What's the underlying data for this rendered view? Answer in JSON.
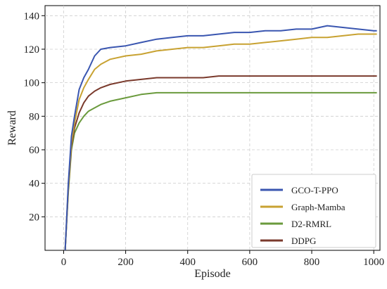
{
  "chart_data": {
    "type": "line",
    "title": "",
    "xlabel": "Episode",
    "ylabel": "Reward",
    "xlim": [
      -60,
      1020
    ],
    "ylim": [
      0,
      146
    ],
    "xticks": [
      0,
      200,
      400,
      600,
      800,
      1000
    ],
    "yticks": [
      20,
      40,
      60,
      80,
      100,
      120,
      140
    ],
    "grid": true,
    "legend_position": "bottom-right",
    "series": [
      {
        "name": "GCO-T-PPO",
        "color": "#3a56b0",
        "x": [
          5,
          15,
          25,
          35,
          50,
          65,
          80,
          100,
          120,
          150,
          200,
          250,
          300,
          350,
          400,
          450,
          500,
          550,
          600,
          650,
          700,
          750,
          800,
          850,
          900,
          950,
          1000,
          1010
        ],
        "y": [
          0,
          40,
          68,
          80,
          96,
          103,
          108,
          116,
          120,
          121,
          122,
          124,
          126,
          127,
          128,
          128,
          129,
          130,
          130,
          131,
          131,
          132,
          132,
          134,
          133,
          132,
          131,
          131
        ]
      },
      {
        "name": "Graph-Mamba",
        "color": "#c8a232",
        "x": [
          5,
          15,
          25,
          35,
          50,
          65,
          80,
          100,
          120,
          150,
          200,
          250,
          300,
          350,
          400,
          450,
          500,
          550,
          600,
          650,
          700,
          750,
          800,
          850,
          900,
          950,
          1000,
          1010
        ],
        "y": [
          0,
          38,
          64,
          76,
          90,
          97,
          102,
          108,
          111,
          114,
          116,
          117,
          119,
          120,
          121,
          121,
          122,
          123,
          123,
          124,
          125,
          126,
          127,
          127,
          128,
          129,
          129,
          129
        ]
      },
      {
        "name": "D2-RMRL",
        "color": "#6a9a3c",
        "x": [
          5,
          15,
          25,
          35,
          50,
          65,
          80,
          100,
          120,
          150,
          200,
          250,
          300,
          350,
          400,
          450,
          500,
          550,
          600,
          650,
          700,
          750,
          800,
          850,
          900,
          950,
          1000,
          1010
        ],
        "y": [
          0,
          35,
          60,
          70,
          76,
          80,
          83,
          85,
          87,
          89,
          91,
          93,
          94,
          94,
          94,
          94,
          94,
          94,
          94,
          94,
          94,
          94,
          94,
          94,
          94,
          94,
          94,
          94
        ]
      },
      {
        "name": "DDPG",
        "color": "#7a3a2c",
        "x": [
          5,
          15,
          25,
          35,
          50,
          65,
          80,
          100,
          120,
          150,
          200,
          250,
          300,
          350,
          400,
          450,
          500,
          550,
          600,
          650,
          700,
          750,
          800,
          850,
          900,
          950,
          1000,
          1010
        ],
        "y": [
          0,
          37,
          62,
          73,
          82,
          88,
          92,
          95,
          97,
          99,
          101,
          102,
          103,
          103,
          103,
          103,
          104,
          104,
          104,
          104,
          104,
          104,
          104,
          104,
          104,
          104,
          104,
          104
        ]
      }
    ]
  }
}
